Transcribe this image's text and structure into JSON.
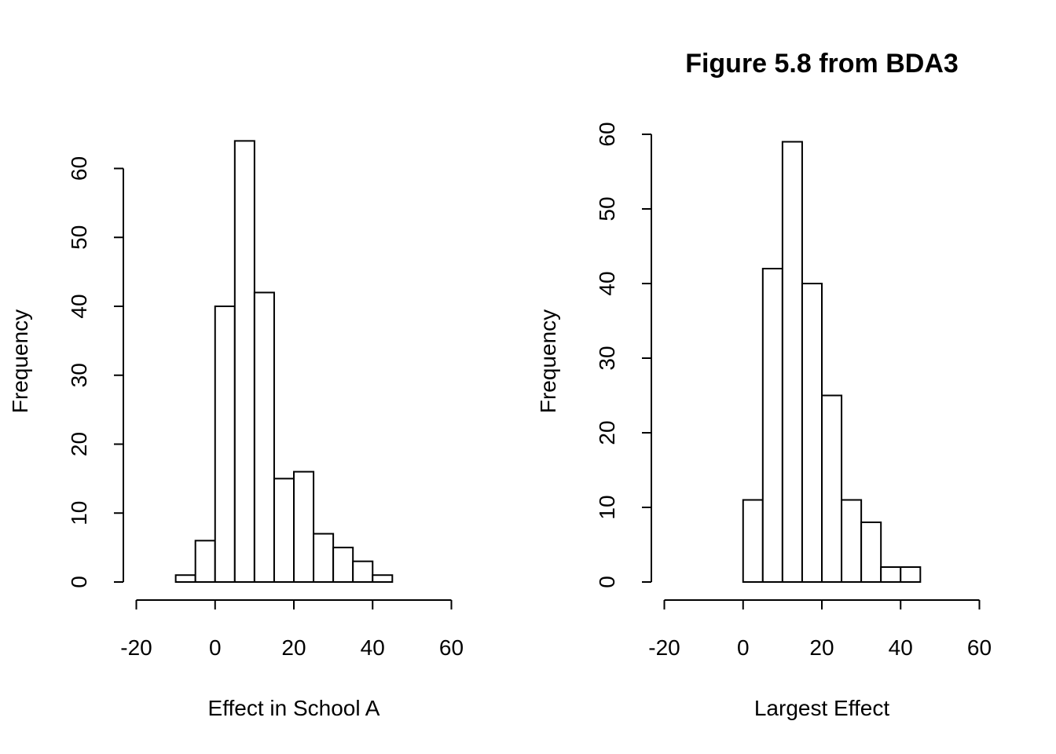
{
  "chart_data": [
    {
      "type": "bar",
      "title": "",
      "xlabel": "Effect in School A",
      "ylabel": "Frequency",
      "bin_edges": [
        -10,
        -5,
        0,
        5,
        10,
        15,
        20,
        25,
        30,
        35,
        40,
        45
      ],
      "values": [
        1,
        6,
        40,
        64,
        42,
        15,
        16,
        7,
        5,
        3,
        1
      ],
      "xlim": [
        -20,
        60
      ],
      "xticks": [
        "-20",
        "0",
        "20",
        "40",
        "60"
      ],
      "ylim": [
        0,
        60
      ],
      "yticks": [
        "0",
        "10",
        "20",
        "30",
        "40",
        "50",
        "60"
      ],
      "grid": false
    },
    {
      "type": "bar",
      "title": "Figure 5.8 from BDA3",
      "xlabel": "Largest Effect",
      "ylabel": "Frequency",
      "bin_edges": [
        0,
        5,
        10,
        15,
        20,
        25,
        30,
        35,
        40,
        45
      ],
      "values": [
        11,
        42,
        59,
        40,
        25,
        11,
        8,
        2,
        2
      ],
      "xlim": [
        -20,
        60
      ],
      "xticks": [
        "-20",
        "0",
        "20",
        "40",
        "60"
      ],
      "ylim": [
        0,
        60
      ],
      "yticks": [
        "0",
        "10",
        "20",
        "30",
        "40",
        "50",
        "60"
      ],
      "grid": false
    }
  ]
}
